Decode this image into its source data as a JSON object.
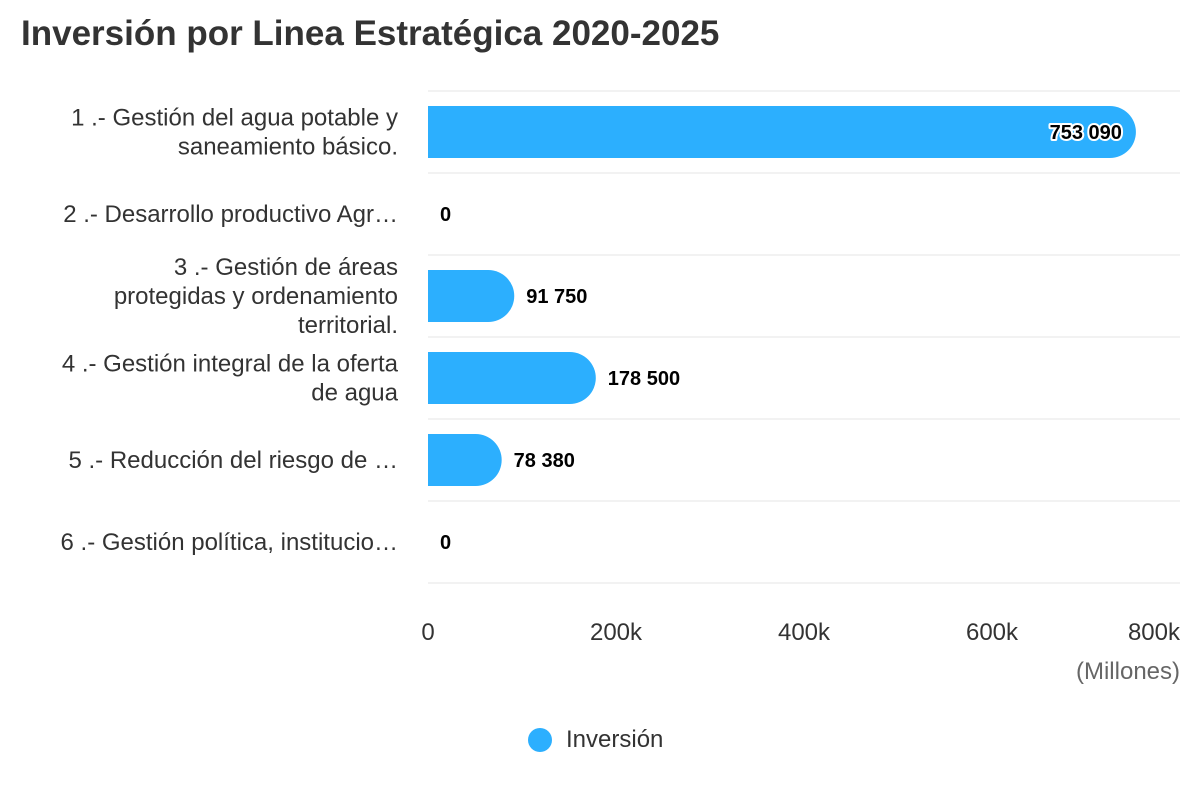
{
  "chart_data": {
    "type": "bar",
    "orientation": "horizontal",
    "title": "Inversión por Linea Estratégica 2020-2025",
    "categories": [
      [
        "1 .- Gestión del agua potable y",
        "saneamiento básico."
      ],
      [
        "2 .- Desarrollo productivo Agr…"
      ],
      [
        "3 .- Gestión de áreas",
        "protegidas y ordenamiento",
        "territorial."
      ],
      [
        "4 .- Gestión integral de la oferta",
        "de agua"
      ],
      [
        "5 .- Reducción del riesgo de …"
      ],
      [
        "6 .- Gestión política, institucio…"
      ]
    ],
    "series": [
      {
        "name": "Inversión",
        "color": "#2caffe",
        "values": [
          753090,
          0,
          91750,
          178500,
          78380,
          0
        ],
        "value_labels": [
          "753 090",
          "0",
          "91 750",
          "178 500",
          "78 380",
          "0"
        ]
      }
    ],
    "xlim": [
      0,
      800000
    ],
    "x_ticks": [
      0,
      200000,
      400000,
      600000,
      800000
    ],
    "x_tick_labels": [
      "0",
      "200k",
      "400k",
      "600k",
      "800k"
    ],
    "x_unit_label": "(Millones)",
    "grid": true,
    "legend_position": "bottom-center",
    "gridline_color": "#e6e6e6",
    "text_color": "#333333"
  }
}
